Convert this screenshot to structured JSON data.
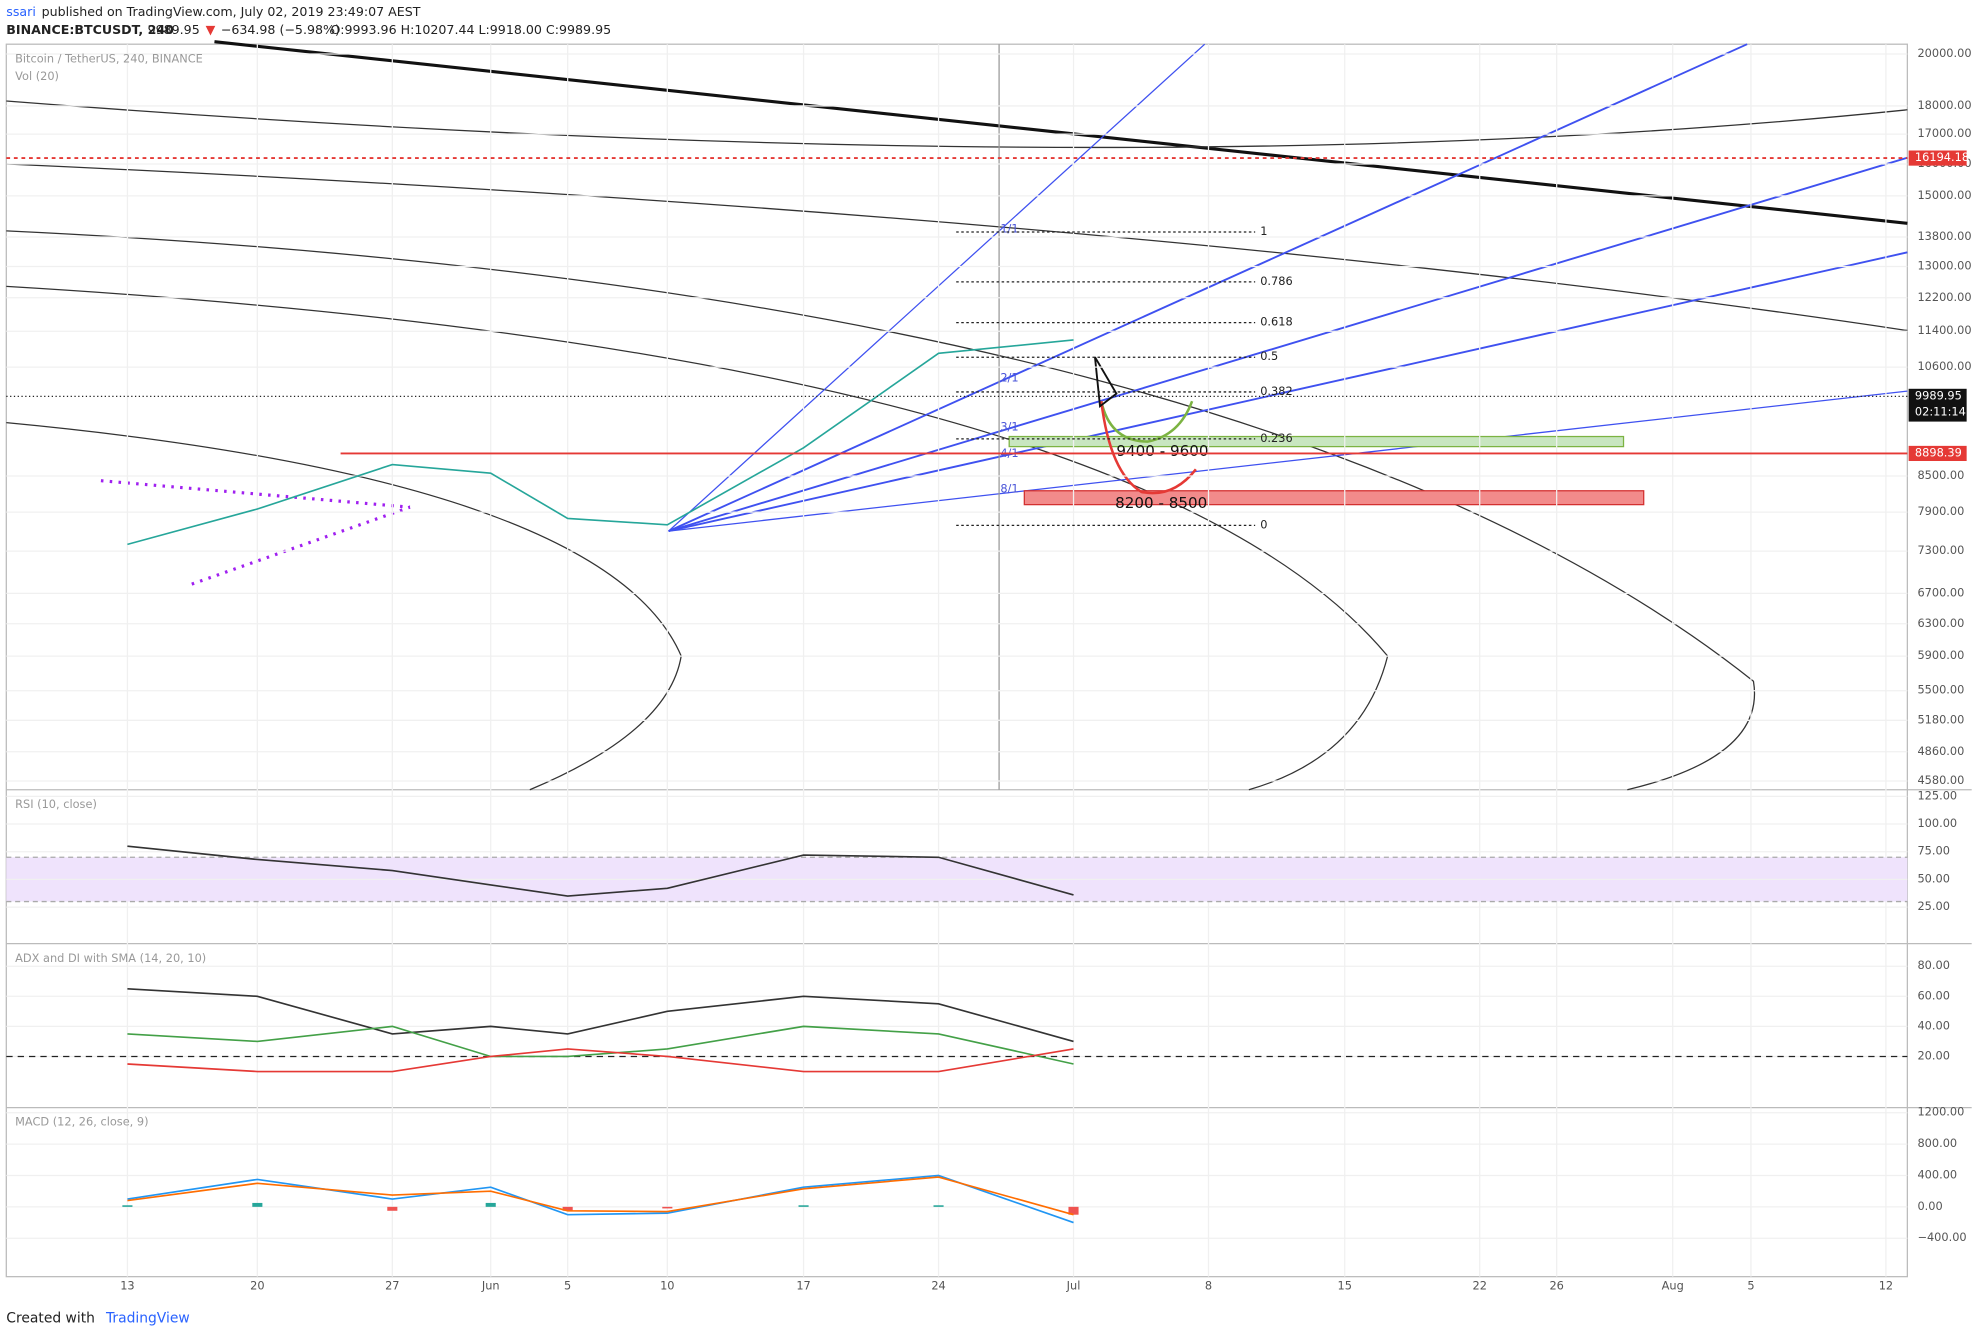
{
  "header": {
    "author": "ssari",
    "published": "published on TradingView.com, July 02, 2019 23:49:07 AEST",
    "symbol": "BINANCE:BTCUSDT, 240",
    "price": "9989.95",
    "arrow": "▼",
    "change": "−634.98 (−5.98%)",
    "ohlc": "O:9993.96 H:10207.44 L:9918.00 C:9989.95"
  },
  "footer": {
    "created": "Created with",
    "brand": "TradingView"
  },
  "chart_data": [
    {
      "type": "line",
      "title": "Bitcoin / TetherUS, 240, BINANCE",
      "subtitle": "Vol (20)",
      "categories": [
        "13",
        "20",
        "27",
        "Jun",
        "5",
        "10",
        "17",
        "24",
        "Jul",
        "8",
        "15",
        "22",
        "26",
        "Aug",
        "5",
        "12"
      ],
      "values": [
        7400,
        7950,
        8700,
        8550,
        7800,
        7700,
        9000,
        10900,
        11200,
        null,
        null,
        null,
        null,
        null,
        null,
        null
      ],
      "color": "#26a69a",
      "log_scale": true,
      "ylim": [
        4500,
        20400
      ],
      "yticks": [
        {
          "value": 20000,
          "label": "20000.00"
        },
        {
          "value": 18000,
          "label": "18000.00"
        },
        {
          "value": 17000,
          "label": "17000.00"
        },
        {
          "value": 16000,
          "label": "16000.00"
        },
        {
          "value": 15000,
          "label": "15000.00"
        },
        {
          "value": 13800,
          "label": "13800.00"
        },
        {
          "value": 13000,
          "label": "13000.00"
        },
        {
          "value": 12200,
          "label": "12200.00"
        },
        {
          "value": 11400,
          "label": "11400.00"
        },
        {
          "value": 10600,
          "label": "10600.00"
        },
        {
          "value": 8500,
          "label": "8500.00"
        },
        {
          "value": 7900,
          "label": "7900.00"
        },
        {
          "value": 7300,
          "label": "7300.00"
        },
        {
          "value": 6700,
          "label": "6700.00"
        },
        {
          "value": 6300,
          "label": "6300.00"
        },
        {
          "value": 5900,
          "label": "5900.00"
        },
        {
          "value": 5500,
          "label": "5500.00"
        },
        {
          "value": 5180,
          "label": "5180.00"
        },
        {
          "value": 4860,
          "label": "4860.00"
        },
        {
          "value": 4580,
          "label": "4580.00"
        }
      ],
      "levels": [
        16194.18,
        8898.39
      ],
      "level_color": "#e53935",
      "last_price": 9989.95,
      "countdown": "02:11:14",
      "fib_levels": [
        {
          "value": 13940,
          "label": "1"
        },
        {
          "value": 12600,
          "label": "0.786"
        },
        {
          "value": 11600,
          "label": "0.618"
        },
        {
          "value": 10815,
          "label": "0.5"
        },
        {
          "value": 10080,
          "label": "0.382"
        },
        {
          "value": 9165,
          "label": "0.236"
        },
        {
          "value": 7690,
          "label": "0"
        }
      ],
      "gann_labels": [
        "1/1",
        "2/1",
        "3/1",
        "4/1",
        "8/1"
      ],
      "zones": [
        "9400 - 9600",
        "8200 - 8500"
      ]
    },
    {
      "type": "line",
      "title": "RSI (10, close)",
      "ylim": [
        -8,
        131
      ],
      "yticks": [
        {
          "value": 125,
          "label": "125.00"
        },
        {
          "value": 100,
          "label": "100.00"
        },
        {
          "value": 75,
          "label": "75.00"
        },
        {
          "value": 50,
          "label": "50.00"
        },
        {
          "value": 25,
          "label": "25.00"
        }
      ],
      "band": [
        30,
        70
      ],
      "band_color": "#efe3fc",
      "series": [
        {
          "color": "#333333",
          "values": [
            80,
            68,
            58,
            45,
            35,
            42,
            72,
            70,
            36,
            null,
            null,
            null,
            null,
            null,
            null,
            null
          ]
        }
      ]
    },
    {
      "type": "line",
      "title": "ADX and DI with SMA (14, 20, 10)",
      "ylim": [
        -14,
        95
      ],
      "yticks": [
        {
          "value": 80,
          "label": "80.00"
        },
        {
          "value": 60,
          "label": "60.00"
        },
        {
          "value": 40,
          "label": "40.00"
        },
        {
          "value": 20,
          "label": "20.00"
        }
      ],
      "hline": 20,
      "series": [
        {
          "color": "#333333",
          "values": [
            65,
            60,
            35,
            40,
            35,
            50,
            60,
            55,
            30,
            null,
            null,
            null,
            null,
            null,
            null,
            null
          ]
        },
        {
          "color": "#43a047",
          "values": [
            35,
            30,
            40,
            20,
            20,
            25,
            40,
            35,
            15,
            null,
            null,
            null,
            null,
            null,
            null,
            null
          ]
        },
        {
          "color": "#e53935",
          "values": [
            15,
            10,
            10,
            20,
            25,
            20,
            10,
            10,
            25,
            null,
            null,
            null,
            null,
            null,
            null,
            null
          ]
        }
      ]
    },
    {
      "type": "line",
      "title": "MACD (12, 26, close, 9)",
      "ylim": [
        -890,
        1265
      ],
      "yticks": [
        {
          "value": 1200,
          "label": "1200.00"
        },
        {
          "value": 800,
          "label": "800.00"
        },
        {
          "value": 400,
          "label": "400.00"
        },
        {
          "value": 0,
          "label": "0.00"
        },
        {
          "value": -400,
          "label": "−400.00"
        }
      ],
      "series": [
        {
          "color": "#2196f3",
          "values": [
            100,
            350,
            100,
            250,
            -100,
            -80,
            250,
            400,
            -200,
            null,
            null,
            null,
            null,
            null,
            null,
            null
          ]
        },
        {
          "color": "#ff6d00",
          "values": [
            80,
            300,
            150,
            200,
            -50,
            -60,
            230,
            380,
            -100,
            null,
            null,
            null,
            null,
            null,
            null,
            null
          ]
        }
      ],
      "histogram": {
        "colors": [
          "#26a69a",
          "#ef5350"
        ],
        "values": [
          20,
          50,
          -50,
          50,
          -50,
          -20,
          20,
          20,
          -100,
          null,
          null,
          null,
          null,
          null,
          null,
          null
        ]
      }
    }
  ]
}
